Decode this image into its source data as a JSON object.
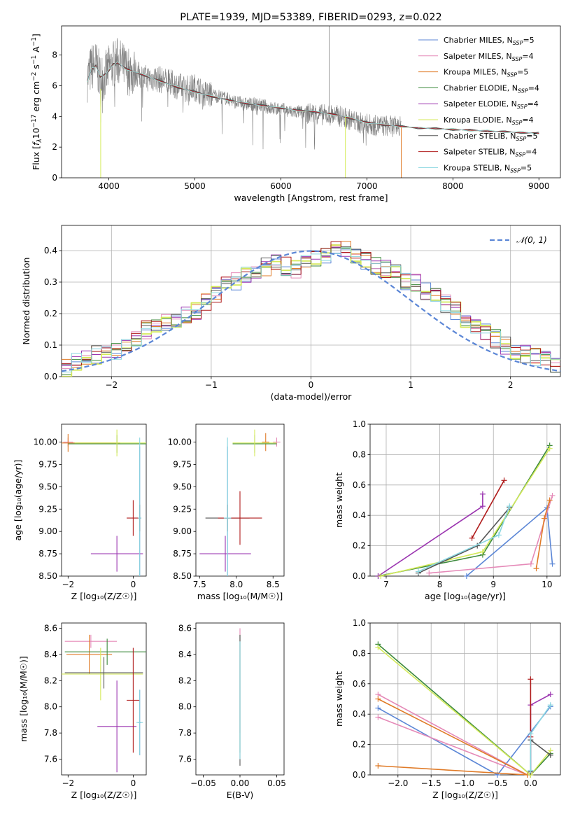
{
  "colors": {
    "Chabrier MILES": "#5b86d6",
    "Salpeter MILES": "#e58ab8",
    "Kroupa MILES": "#e07b28",
    "Chabrier ELODIE": "#3d8a3d",
    "Salpeter ELODIE": "#9b35b0",
    "Kroupa ELODIE": "#d4ea5a",
    "Chabrier STELIB": "#555555",
    "Salpeter STELIB": "#b01c1c",
    "Kroupa STELIB": "#8ad6e0"
  },
  "chart_data": [
    {
      "id": "spectrum",
      "type": "line",
      "title": "PLATE=1939, MJD=53389, FIBERID=0293, z=0.022",
      "xlabel": "wavelength [Angstrom, rest frame]",
      "ylabel_parts": {
        "a": "Flux [",
        "b": "f",
        "c": "λ",
        "d": "10",
        "e": "−17",
        "f": " erg cm",
        "g": "−2",
        "h": " s",
        "i": "−1",
        "j": " A",
        "k": "−1",
        "l": "]"
      },
      "xlim": [
        3450,
        9250
      ],
      "ylim": [
        0,
        9.9
      ],
      "xticks": [
        4000,
        5000,
        6000,
        7000,
        8000,
        9000
      ],
      "yticks": [
        0,
        2,
        4,
        6,
        8
      ],
      "legend": "top-right",
      "legend_entries": [
        {
          "model": "Chabrier MILES",
          "n": "5"
        },
        {
          "model": "Salpeter MILES",
          "n": "4"
        },
        {
          "model": "Kroupa MILES",
          "n": "5"
        },
        {
          "model": "Chabrier ELODIE",
          "n": "4"
        },
        {
          "model": "Salpeter ELODIE",
          "n": "4"
        },
        {
          "model": "Kroupa ELODIE",
          "n": "4"
        },
        {
          "model": "Chabrier STELIB",
          "n": "5"
        },
        {
          "model": "Salpeter STELIB",
          "n": "4"
        },
        {
          "model": "Kroupa STELIB",
          "n": "5"
        }
      ],
      "nssp_label": {
        "n": "N",
        "sub": "SSP",
        "eq": "="
      },
      "data_trace": {
        "color": "#7f7f7f",
        "x": [
          3750,
          3800,
          3850,
          3900,
          3950,
          4000,
          4050,
          4100,
          4150,
          4200,
          4300,
          4400,
          4500,
          4600,
          4700,
          4800,
          4900,
          5000,
          5100,
          5200,
          5300,
          5400,
          5500,
          5600,
          5700,
          5800,
          5900,
          6000,
          6100,
          6200,
          6300,
          6400,
          6500,
          6600,
          6700,
          6800,
          6900,
          7000,
          7100,
          7200,
          7300,
          7400
        ],
        "y": [
          6.5,
          7.2,
          7.4,
          6.5,
          6.6,
          7.1,
          7.4,
          7.6,
          7.4,
          7.0,
          6.9,
          6.5,
          6.5,
          6.4,
          6.2,
          6.0,
          5.8,
          5.9,
          5.5,
          5.4,
          5.3,
          5.1,
          4.9,
          4.8,
          4.8,
          4.7,
          4.5,
          4.5,
          4.3,
          4.3,
          4.2,
          4.2,
          4.1,
          4.1,
          4.0,
          3.8,
          3.6,
          3.5,
          3.4,
          3.4,
          3.35,
          3.3
        ]
      },
      "model_trace": {
        "x": [
          3750,
          3800,
          3850,
          3900,
          3950,
          4000,
          4050,
          4100,
          4200,
          4400,
          4600,
          4800,
          5000,
          5200,
          5400,
          5600,
          5800,
          6000,
          6200,
          6400,
          6600,
          6800,
          7000,
          7200,
          7400,
          7600,
          7800,
          8000,
          8200,
          8400,
          8600,
          8800,
          9000
        ],
        "y": [
          6.3,
          7.1,
          7.3,
          6.6,
          6.7,
          7.0,
          7.4,
          7.5,
          7.1,
          6.7,
          6.3,
          5.9,
          5.6,
          5.3,
          5.05,
          4.85,
          4.7,
          4.55,
          4.4,
          4.3,
          4.15,
          3.9,
          3.6,
          3.45,
          3.35,
          3.25,
          3.2,
          3.15,
          3.1,
          3.05,
          3.0,
          2.95,
          2.9
        ]
      }
    },
    {
      "id": "residuals",
      "type": "step",
      "xlabel": "(data-model)/error",
      "ylabel": "Normed distribution",
      "xlim": [
        -2.5,
        2.5
      ],
      "ylim": [
        0,
        0.48
      ],
      "xticks": [
        -2,
        -1,
        0,
        1,
        2
      ],
      "yticks": [
        0.0,
        0.1,
        0.2,
        0.3,
        0.4
      ],
      "grid": true,
      "legend": "top-right",
      "normal_label": "𝒩(0, 1)",
      "normal_color": "#5b86d6",
      "base_hist": [
        0.03,
        0.05,
        0.06,
        0.07,
        0.07,
        0.08,
        0.09,
        0.12,
        0.15,
        0.16,
        0.17,
        0.18,
        0.2,
        0.21,
        0.24,
        0.26,
        0.29,
        0.3,
        0.32,
        0.33,
        0.35,
        0.37,
        0.35,
        0.34,
        0.36,
        0.38,
        0.39,
        0.41,
        0.4,
        0.39,
        0.37,
        0.35,
        0.34,
        0.33,
        0.3,
        0.3,
        0.27,
        0.25,
        0.23,
        0.21,
        0.18,
        0.16,
        0.14,
        0.12,
        0.1,
        0.08,
        0.07,
        0.06,
        0.05,
        0.04
      ]
    },
    {
      "id": "age-vs-z",
      "type": "errorbar",
      "xlabel": "Z [log₁₀(Z/Z☉)]",
      "ylabel": "age  [log₁₀(age/yr)]",
      "xlim": [
        -2.2,
        0.4
      ],
      "ylim": [
        8.5,
        10.2
      ],
      "xticks": [
        -2,
        0
      ],
      "yticks": [
        8.5,
        8.75,
        9.0,
        9.25,
        9.5,
        9.75,
        10.0
      ],
      "points": [
        {
          "model": "Chabrier MILES",
          "x": 0.2,
          "xerr": 0.05,
          "y": 9.15,
          "yerr": 0.8
        },
        {
          "model": "Salpeter MILES",
          "x": -2.0,
          "xerr": 0.15,
          "y": 10.0,
          "yerr": 0.05
        },
        {
          "model": "Kroupa MILES",
          "x": -2.0,
          "xerr": 1.6,
          "y": 9.99,
          "yerr": 0.1
        },
        {
          "model": "Chabrier ELODIE",
          "x": -0.5,
          "xerr": 1.5,
          "y": 9.98,
          "yerr": 0.1
        },
        {
          "model": "Salpeter ELODIE",
          "x": -0.5,
          "xerr": 0.8,
          "y": 8.75,
          "yerr": 0.2
        },
        {
          "model": "Kroupa ELODIE",
          "x": -0.5,
          "xerr": 1.3,
          "y": 9.99,
          "yerr": 0.15
        },
        {
          "model": "Chabrier STELIB",
          "x": 0.2,
          "xerr": 0.05,
          "y": 9.15,
          "yerr": 0.15
        },
        {
          "model": "Salpeter STELIB",
          "x": 0.0,
          "xerr": 0.2,
          "y": 9.15,
          "yerr": 0.2
        },
        {
          "model": "Kroupa STELIB",
          "x": 0.2,
          "xerr": 0.05,
          "y": 9.15,
          "yerr": 0.9
        }
      ]
    },
    {
      "id": "age-vs-mass",
      "type": "errorbar",
      "xlabel": "mass [log₁₀(M/M☉)]",
      "ylabel": "",
      "xlim": [
        7.45,
        8.65
      ],
      "ylim": [
        8.5,
        10.2
      ],
      "xticks": [
        7.5,
        8.0,
        8.5
      ],
      "yticks": [
        8.5,
        8.75,
        9.0,
        9.25,
        9.5,
        9.75,
        10.0
      ],
      "points": [
        {
          "model": "Chabrier MILES",
          "x": 7.88,
          "xerr": 0.05,
          "y": 9.15,
          "yerr": 0.8
        },
        {
          "model": "Salpeter MILES",
          "x": 8.55,
          "xerr": 0.05,
          "y": 10.0,
          "yerr": 0.05
        },
        {
          "model": "Kroupa MILES",
          "x": 8.4,
          "xerr": 0.05,
          "y": 10.0,
          "yerr": 0.1
        },
        {
          "model": "Chabrier ELODIE",
          "x": 8.25,
          "xerr": 0.3,
          "y": 9.98,
          "yerr": 0.1
        },
        {
          "model": "Salpeter ELODIE",
          "x": 7.85,
          "xerr": 0.35,
          "y": 8.75,
          "yerr": 0.2
        },
        {
          "model": "Kroupa ELODIE",
          "x": 8.25,
          "xerr": 0.3,
          "y": 9.99,
          "yerr": 0.15
        },
        {
          "model": "Chabrier STELIB",
          "x": 7.88,
          "xerr": 0.3,
          "y": 9.15,
          "yerr": 0.15
        },
        {
          "model": "Salpeter STELIB",
          "x": 8.05,
          "xerr": 0.3,
          "y": 9.15,
          "yerr": 0.3
        },
        {
          "model": "Kroupa STELIB",
          "x": 7.88,
          "xerr": 0.05,
          "y": 9.15,
          "yerr": 0.9
        }
      ]
    },
    {
      "id": "weight-vs-age",
      "type": "line",
      "xlabel": "age  [log₁₀(age/yr)]",
      "ylabel": "mass weight",
      "xlim": [
        6.7,
        10.25
      ],
      "ylim": [
        0,
        1
      ],
      "xticks": [
        7,
        8,
        9,
        10
      ],
      "yticks": [
        0.0,
        0.2,
        0.4,
        0.6,
        0.8,
        1.0
      ],
      "grid": true,
      "series": [
        {
          "model": "Chabrier MILES",
          "x": [
            8.5,
            10.0,
            10.1
          ],
          "y": [
            0.0,
            0.45,
            0.08
          ]
        },
        {
          "model": "Salpeter MILES",
          "x": [
            7.8,
            9.7,
            10.1
          ],
          "y": [
            0.02,
            0.08,
            0.53
          ]
        },
        {
          "model": "Kroupa MILES",
          "x": [
            9.8,
            9.95,
            10.05
          ],
          "y": [
            0.05,
            0.38,
            0.5
          ]
        },
        {
          "model": "Chabrier ELODIE",
          "x": [
            6.85,
            8.8,
            10.05
          ],
          "y": [
            0.0,
            0.14,
            0.86
          ]
        },
        {
          "model": "Salpeter ELODIE",
          "x": [
            6.85,
            8.8,
            8.8
          ],
          "y": [
            0.0,
            0.46,
            0.54
          ]
        },
        {
          "model": "Kroupa ELODIE",
          "x": [
            6.9,
            8.8,
            10.05
          ],
          "y": [
            0.0,
            0.16,
            0.84
          ]
        },
        {
          "model": "Chabrier STELIB",
          "x": [
            7.6,
            8.7,
            9.3
          ],
          "y": [
            0.02,
            0.2,
            0.45
          ]
        },
        {
          "model": "Salpeter STELIB",
          "x": [
            8.6,
            9.2
          ],
          "y": [
            0.25,
            0.63
          ]
        },
        {
          "model": "Kroupa STELIB",
          "x": [
            7.6,
            9.1,
            9.3
          ],
          "y": [
            0.03,
            0.27,
            0.46
          ]
        }
      ]
    },
    {
      "id": "mass-vs-z",
      "type": "errorbar",
      "xlabel": "Z [log₁₀(Z/Z☉)]",
      "ylabel": "mass [log₁₀(M/M☉)]",
      "xlim": [
        -2.2,
        0.4
      ],
      "ylim": [
        7.48,
        8.64
      ],
      "xticks": [
        -2,
        0
      ],
      "yticks": [
        7.6,
        7.8,
        8.0,
        8.2,
        8.4,
        8.6
      ],
      "points": [
        {
          "model": "Chabrier MILES",
          "x": 0.2,
          "xerr": 0.05,
          "y": 7.88,
          "yerr": 0.25
        },
        {
          "model": "Salpeter MILES",
          "x": -1.3,
          "xerr": 0.8,
          "y": 8.5,
          "yerr": 0.05
        },
        {
          "model": "Kroupa MILES",
          "x": -1.35,
          "xerr": 0.7,
          "y": 8.4,
          "yerr": 0.15
        },
        {
          "model": "Chabrier ELODIE",
          "x": -0.8,
          "xerr": 1.3,
          "y": 8.42,
          "yerr": 0.1
        },
        {
          "model": "Salpeter ELODIE",
          "x": -0.5,
          "xerr": 0.6,
          "y": 7.85,
          "yerr": 0.35
        },
        {
          "model": "Kroupa ELODIE",
          "x": -1.0,
          "xerr": 1.3,
          "y": 8.25,
          "yerr": 0.2
        },
        {
          "model": "Chabrier STELIB",
          "x": -0.9,
          "xerr": 1.2,
          "y": 8.26,
          "yerr": 0.12
        },
        {
          "model": "Salpeter STELIB",
          "x": 0.0,
          "xerr": 0.2,
          "y": 8.05,
          "yerr": 0.4
        },
        {
          "model": "Kroupa STELIB",
          "x": 0.2,
          "xerr": 0.1,
          "y": 7.88,
          "yerr": 0.25
        }
      ]
    },
    {
      "id": "mass-vs-ebv",
      "type": "errorbar",
      "xlabel": "E(B-V)",
      "ylabel": "",
      "xlim": [
        -0.06,
        0.06
      ],
      "ylim": [
        7.48,
        8.64
      ],
      "xticks": [
        -0.05,
        0.0,
        0.05
      ],
      "yticks": [
        7.6,
        7.8,
        8.0,
        8.2,
        8.4,
        8.6
      ],
      "points": [
        {
          "model": "Chabrier MILES",
          "x": 0.0,
          "xerr": 0.0,
          "y": 8.1,
          "yerr": 0.45
        },
        {
          "model": "Salpeter MILES",
          "x": 0.0,
          "xerr": 0.0,
          "y": 8.2,
          "yerr": 0.4
        },
        {
          "model": "Kroupa ELODIE",
          "x": 0.0,
          "xerr": 0.0,
          "y": 8.1,
          "yerr": 0.45
        },
        {
          "model": "Chabrier STELIB",
          "x": 0.0,
          "xerr": 0.0,
          "y": 8.05,
          "yerr": 0.5
        },
        {
          "model": "Kroupa STELIB",
          "x": 0.0,
          "xerr": 0.0,
          "y": 8.05,
          "yerr": 0.45
        }
      ]
    },
    {
      "id": "weight-vs-z",
      "type": "line",
      "xlabel": "Z [log₁₀(Z/Z☉)]",
      "ylabel": "mass weight",
      "xlim": [
        -2.42,
        0.45
      ],
      "ylim": [
        0,
        1
      ],
      "xticks": [
        -2.0,
        -1.5,
        -1.0,
        -0.5,
        0.0
      ],
      "yticks": [
        0.0,
        0.2,
        0.4,
        0.6,
        0.8,
        1.0
      ],
      "grid": true,
      "series": [
        {
          "model": "Chabrier MILES",
          "x": [
            -2.3,
            -0.5,
            0.3
          ],
          "y": [
            0.44,
            0.0,
            0.45
          ]
        },
        {
          "model": "Salpeter MILES",
          "x": [
            -2.3,
            -0.05,
            -2.3
          ],
          "y": [
            0.38,
            0.0,
            0.53
          ]
        },
        {
          "model": "Kroupa MILES",
          "x": [
            -2.3,
            -0.05,
            -2.3
          ],
          "y": [
            0.06,
            0.0,
            0.5
          ]
        },
        {
          "model": "Chabrier ELODIE",
          "x": [
            -2.3,
            0.0,
            0.3
          ],
          "y": [
            0.86,
            0.0,
            0.14
          ]
        },
        {
          "model": "Salpeter ELODIE",
          "x": [
            0.0,
            0.0,
            0.3
          ],
          "y": [
            0.0,
            0.46,
            0.53
          ]
        },
        {
          "model": "Kroupa ELODIE",
          "x": [
            -2.3,
            0.0,
            0.3
          ],
          "y": [
            0.84,
            0.0,
            0.16
          ]
        },
        {
          "model": "Chabrier STELIB",
          "x": [
            0.0,
            0.0,
            0.3
          ],
          "y": [
            0.02,
            0.23,
            0.13
          ]
        },
        {
          "model": "Salpeter STELIB",
          "x": [
            0.0,
            0.0
          ],
          "y": [
            0.25,
            0.63
          ]
        },
        {
          "model": "Kroupa STELIB",
          "x": [
            0.0,
            0.0,
            0.3
          ],
          "y": [
            0.03,
            0.27,
            0.46
          ]
        }
      ]
    }
  ]
}
